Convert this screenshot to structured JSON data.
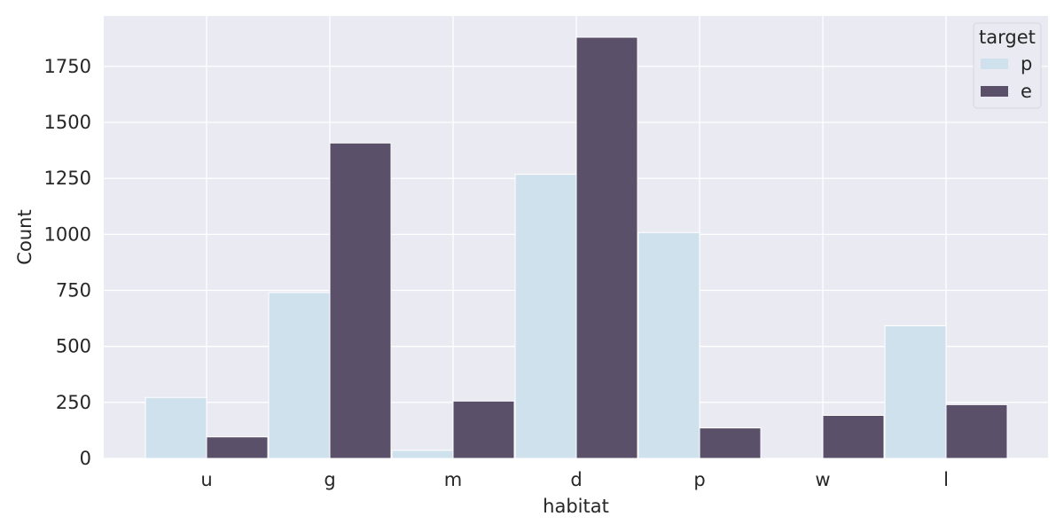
{
  "chart_data": {
    "type": "bar",
    "xlabel": "habitat",
    "ylabel": "Count",
    "categories": [
      "u",
      "g",
      "m",
      "d",
      "p",
      "w",
      "l"
    ],
    "series": [
      {
        "name": "p",
        "values": [
          272,
          740,
          36,
          1268,
          1008,
          0,
          592
        ],
        "color": "#cfe1ec"
      },
      {
        "name": "e",
        "values": [
          96,
          1408,
          256,
          1880,
          136,
          192,
          240
        ],
        "color": "#5b506a"
      }
    ],
    "ylim": [
      0,
      1975
    ],
    "yticks": [
      0,
      250,
      500,
      750,
      1000,
      1250,
      1500,
      1750
    ],
    "grid": true,
    "legend": {
      "title": "target",
      "placement": "top-right"
    },
    "colors": {
      "plot_background": "#eaeaf2",
      "grid": "#ffffff",
      "text": "#262626"
    }
  }
}
